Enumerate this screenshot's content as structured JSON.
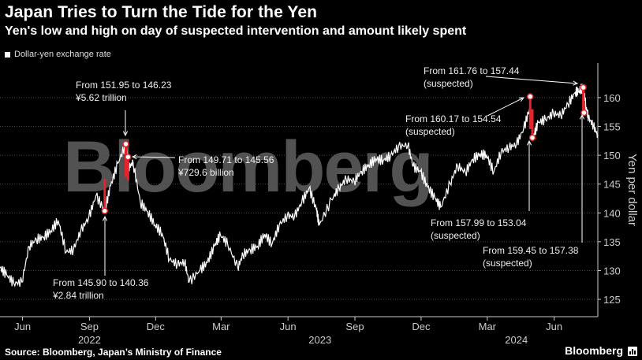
{
  "header": {
    "title": "Japan Tries to Turn the Tide for the Yen",
    "subtitle": "Yen's low and high on day of suspected intervention and amount likely spent"
  },
  "legend": {
    "label": "Dollar-yen exchange rate"
  },
  "footer": {
    "source": "Source: Bloomberg, Japan’s Ministry of Finance",
    "brand": "Bloomberg"
  },
  "watermark": {
    "text": "Bloomberg",
    "logo_lettering": true
  },
  "colors": {
    "background": "#000000",
    "line": "#ffffff",
    "intervention": "#e8232b",
    "marker_fill": "#ffffff",
    "grid": "#4a4a4a",
    "axis_text": "#cccccc"
  },
  "chart_data": {
    "type": "line",
    "title": "Japan Tries to Turn the Tide for the Yen",
    "ylabel": "Yen per dollar",
    "xlabel": "",
    "ylim": [
      122,
      166
    ],
    "yticks": [
      125,
      130,
      135,
      140,
      145,
      150,
      155,
      160
    ],
    "xlim": [
      "2022-05-01",
      "2024-07-31"
    ],
    "xticks": [
      {
        "date": "2022-06-01",
        "label": "Jun"
      },
      {
        "date": "2022-09-01",
        "label": "Sep"
      },
      {
        "date": "2022-12-01",
        "label": "Dec"
      },
      {
        "date": "2023-03-01",
        "label": "Mar"
      },
      {
        "date": "2023-06-01",
        "label": "Jun"
      },
      {
        "date": "2023-09-01",
        "label": "Sep"
      },
      {
        "date": "2023-12-01",
        "label": "Dec"
      },
      {
        "date": "2024-03-01",
        "label": "Mar"
      },
      {
        "date": "2024-06-01",
        "label": "Jun"
      }
    ],
    "year_labels": [
      {
        "date": "2022-09-01",
        "label": "2022"
      },
      {
        "date": "2023-07-15",
        "label": "2023"
      },
      {
        "date": "2024-04-10",
        "label": "2024"
      }
    ],
    "grid": true,
    "legend_position": "top-left",
    "series": [
      {
        "name": "Dollar-yen exchange rate",
        "x": [
          "2022-05-01",
          "2022-05-10",
          "2022-05-20",
          "2022-05-31",
          "2022-06-10",
          "2022-06-20",
          "2022-06-30",
          "2022-07-10",
          "2022-07-20",
          "2022-07-31",
          "2022-08-10",
          "2022-08-20",
          "2022-08-31",
          "2022-09-10",
          "2022-09-22",
          "2022-09-30",
          "2022-10-10",
          "2022-10-21",
          "2022-10-25",
          "2022-10-31",
          "2022-11-10",
          "2022-11-20",
          "2022-11-30",
          "2022-12-10",
          "2022-12-20",
          "2022-12-31",
          "2023-01-10",
          "2023-01-16",
          "2023-01-31",
          "2023-02-10",
          "2023-02-20",
          "2023-02-28",
          "2023-03-10",
          "2023-03-24",
          "2023-03-31",
          "2023-04-10",
          "2023-04-20",
          "2023-04-30",
          "2023-05-10",
          "2023-05-20",
          "2023-05-31",
          "2023-06-10",
          "2023-06-20",
          "2023-06-30",
          "2023-07-10",
          "2023-07-14",
          "2023-07-31",
          "2023-08-10",
          "2023-08-20",
          "2023-08-31",
          "2023-09-10",
          "2023-09-20",
          "2023-09-30",
          "2023-10-10",
          "2023-10-20",
          "2023-10-31",
          "2023-11-13",
          "2023-11-20",
          "2023-11-30",
          "2023-12-10",
          "2023-12-20",
          "2023-12-28",
          "2024-01-10",
          "2024-01-20",
          "2024-01-31",
          "2024-02-10",
          "2024-02-20",
          "2024-02-29",
          "2024-03-10",
          "2024-03-20",
          "2024-03-31",
          "2024-04-10",
          "2024-04-20",
          "2024-04-29",
          "2024-05-03",
          "2024-05-10",
          "2024-05-20",
          "2024-05-31",
          "2024-06-10",
          "2024-06-20",
          "2024-06-30",
          "2024-07-05",
          "2024-07-11",
          "2024-07-15",
          "2024-07-18",
          "2024-07-25",
          "2024-07-31"
        ],
        "y": [
          130.5,
          129.3,
          127.8,
          128.0,
          134.2,
          135.4,
          135.8,
          136.9,
          138.7,
          133.2,
          133.6,
          136.9,
          139.2,
          143.0,
          140.4,
          144.7,
          148.6,
          151.95,
          147.9,
          148.7,
          141.8,
          140.2,
          137.9,
          136.4,
          131.9,
          131.1,
          131.5,
          128.0,
          130.1,
          131.4,
          134.3,
          136.2,
          134.6,
          130.5,
          132.8,
          133.6,
          134.2,
          136.3,
          134.6,
          137.9,
          139.5,
          139.4,
          141.9,
          144.3,
          140.6,
          137.9,
          142.3,
          144.3,
          145.9,
          145.5,
          147.2,
          148.3,
          149.4,
          149.1,
          149.9,
          151.5,
          151.8,
          148.1,
          147.2,
          144.5,
          142.6,
          141.0,
          145.1,
          148.2,
          147.0,
          149.3,
          150.2,
          150.0,
          147.1,
          150.6,
          151.35,
          151.9,
          154.6,
          158.4,
          153.1,
          155.7,
          156.2,
          157.3,
          156.9,
          158.9,
          160.9,
          161.2,
          161.76,
          158.2,
          156.6,
          155.1,
          153.4
        ]
      }
    ],
    "interventions": [
      {
        "date": "2022-09-22",
        "high": 145.9,
        "low": 140.36,
        "label": "From 145.90 to 140.36",
        "amount": "¥2.84 trillion"
      },
      {
        "date": "2022-10-21",
        "high": 151.95,
        "low": 146.23,
        "label": "From 151.95 to 146.23",
        "amount": "¥5.62 trillion"
      },
      {
        "date": "2022-10-24",
        "high": 149.71,
        "low": 145.56,
        "label": "From 149.71 to 145.56",
        "amount": "¥729.6 billion"
      },
      {
        "date": "2024-04-29",
        "high": 160.17,
        "low": 154.54,
        "label": "From 160.17 to 154.54",
        "amount": "(suspected)"
      },
      {
        "date": "2024-05-02",
        "high": 157.99,
        "low": 153.04,
        "label": "From 157.99 to 153.04",
        "amount": "(suspected)"
      },
      {
        "date": "2024-07-11",
        "high": 161.76,
        "low": 157.44,
        "label": "From 161.76 to 157.44",
        "amount": "(suspected)"
      },
      {
        "date": "2024-07-12",
        "high": 159.45,
        "low": 157.38,
        "label": "From 159.45 to 157.38",
        "amount": "(suspected)"
      }
    ]
  }
}
